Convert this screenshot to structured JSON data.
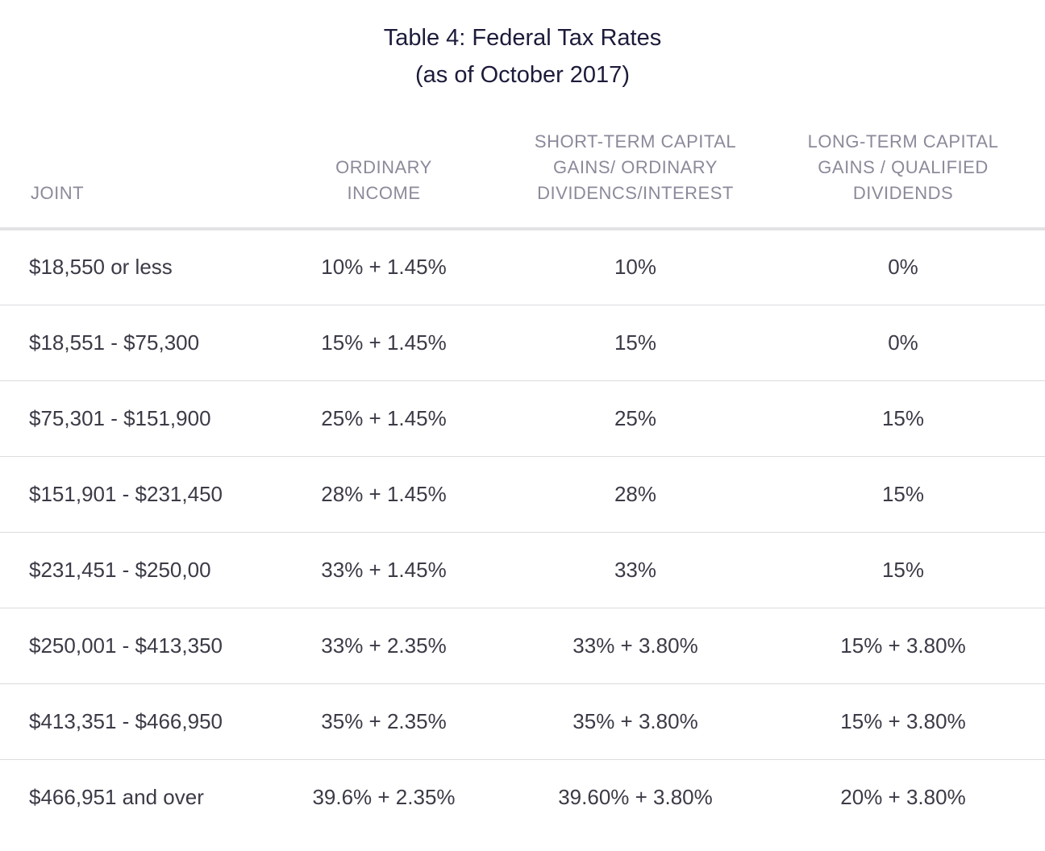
{
  "title": {
    "line1": "Table 4: Federal Tax Rates",
    "line2": "(as of October 2017)"
  },
  "table": {
    "headers": [
      "JOINT",
      "ORDINARY\nINCOME",
      "SHORT-TERM CAPITAL\nGAINS/ ORDINARY\nDIVIDENCS/INTEREST",
      "LONG-TERM CAPITAL\nGAINS / QUALIFIED\nDIVIDENDS"
    ],
    "rows": [
      [
        "$18,550 or less",
        "10% + 1.45%",
        "10%",
        "0%"
      ],
      [
        "$18,551 - $75,300",
        "15% + 1.45%",
        "15%",
        "0%"
      ],
      [
        "$75,301 - $151,900",
        "25% + 1.45%",
        "25%",
        "15%"
      ],
      [
        "$151,901 - $231,450",
        "28% + 1.45%",
        "28%",
        "15%"
      ],
      [
        "$231,451 - $250,00",
        "33% + 1.45%",
        "33%",
        "15%"
      ],
      [
        "$250,001 - $413,350",
        "33% + 2.35%",
        "33% + 3.80%",
        "15% + 3.80%"
      ],
      [
        "$413,351 - $466,950",
        "35% + 2.35%",
        "35% + 3.80%",
        "15% + 3.80%"
      ],
      [
        "$466,951 and over",
        "39.6% + 2.35%",
        "39.60% + 3.80%",
        "20% + 3.80%"
      ]
    ]
  }
}
